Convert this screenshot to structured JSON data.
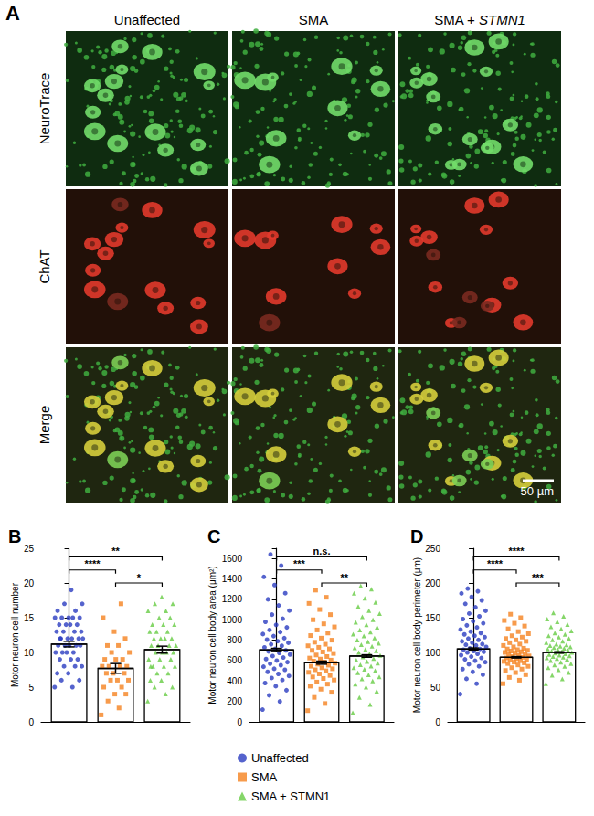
{
  "panel_a": {
    "label": "A",
    "columns": [
      {
        "text": "Unaffected"
      },
      {
        "text": "SMA"
      },
      {
        "text": "SMA + ",
        "italic": "STMN1"
      }
    ],
    "rows": [
      "NeuroTrace",
      "ChAT",
      "Merge"
    ],
    "scale_bar": "50 µm"
  },
  "shared_legend": [
    {
      "name": "Unaffected",
      "color": "#2b3cc0",
      "marker": "circle"
    },
    {
      "name": "SMA",
      "color": "#f5821f",
      "marker": "square"
    },
    {
      "name": "SMA + STMN1",
      "color": "#66cc44",
      "marker": "triangle"
    }
  ],
  "chart_data": [
    {
      "type": "bar",
      "panel": "B",
      "y_label": "Motor neuron cell number",
      "ylim": [
        0,
        25
      ],
      "yticks": [
        0,
        5,
        10,
        15,
        20,
        25
      ],
      "grid": false,
      "tick_labels": "y",
      "series": [
        {
          "name": "Unaffected",
          "mean": 11.2,
          "sem": 0.4,
          "values": [
            5,
            5,
            6,
            6,
            7,
            7,
            8,
            8,
            8,
            9,
            9,
            9,
            10,
            10,
            10,
            10,
            11,
            11,
            11,
            11,
            11,
            12,
            12,
            12,
            12,
            12,
            13,
            13,
            13,
            13,
            14,
            14,
            14,
            14,
            15,
            15,
            15,
            15,
            15,
            16,
            16,
            17,
            17,
            19,
            12
          ]
        },
        {
          "name": "SMA",
          "mean": 7.7,
          "sem": 0.7,
          "values": [
            1,
            2,
            3,
            4,
            4,
            5,
            5,
            6,
            6,
            6,
            7,
            7,
            7,
            8,
            8,
            8,
            8,
            9,
            9,
            9,
            10,
            10,
            11,
            11,
            12,
            13,
            15,
            17
          ]
        },
        {
          "name": "SMA + STMN1",
          "mean": 10.4,
          "sem": 0.5,
          "values": [
            3,
            4,
            5,
            5,
            6,
            6,
            7,
            7,
            8,
            8,
            8,
            9,
            9,
            9,
            10,
            10,
            10,
            10,
            11,
            11,
            11,
            11,
            12,
            12,
            12,
            12,
            13,
            13,
            13,
            14,
            14,
            14,
            15,
            15,
            16,
            16,
            17,
            17,
            18,
            8
          ]
        }
      ],
      "significance": [
        {
          "groups": [
            "SMA",
            "SMA + STMN1"
          ],
          "label": "*"
        },
        {
          "groups": [
            "Unaffected",
            "SMA"
          ],
          "label": "****"
        },
        {
          "groups": [
            "Unaffected",
            "SMA + STMN1"
          ],
          "label": "**"
        }
      ]
    },
    {
      "type": "bar",
      "panel": "C",
      "y_label": "Motor neuron cell body area (μm²)",
      "ylim": [
        0,
        1700
      ],
      "yticks": [
        0,
        200,
        400,
        600,
        800,
        1000,
        1200,
        1400,
        1600
      ],
      "grid": false,
      "tick_labels": "y",
      "series": [
        {
          "name": "Unaffected",
          "mean": 705,
          "sem": 15,
          "values": [
            120,
            200,
            260,
            310,
            350,
            380,
            410,
            430,
            450,
            470,
            490,
            510,
            520,
            540,
            555,
            570,
            585,
            600,
            615,
            630,
            645,
            660,
            675,
            690,
            700,
            715,
            730,
            745,
            760,
            775,
            790,
            805,
            820,
            840,
            860,
            880,
            900,
            925,
            950,
            980,
            1010,
            1050,
            1090,
            1140,
            1200,
            1260,
            1340,
            1420,
            1530,
            1640
          ]
        },
        {
          "name": "SMA",
          "mean": 580,
          "sem": 15,
          "values": [
            110,
            180,
            240,
            290,
            320,
            350,
            370,
            390,
            410,
            425,
            440,
            455,
            470,
            485,
            500,
            510,
            520,
            530,
            545,
            555,
            565,
            575,
            585,
            595,
            605,
            615,
            625,
            640,
            655,
            670,
            685,
            700,
            715,
            730,
            745,
            760,
            780,
            800,
            820,
            845,
            870,
            900,
            930,
            960,
            1000,
            1050,
            1100,
            1160,
            1220,
            1290
          ]
        },
        {
          "name": "SMA + STMN1",
          "mean": 645,
          "sem": 12,
          "values": [
            90,
            170,
            240,
            300,
            340,
            370,
            400,
            420,
            440,
            460,
            480,
            500,
            515,
            530,
            545,
            560,
            575,
            590,
            605,
            620,
            635,
            650,
            665,
            680,
            695,
            710,
            725,
            740,
            755,
            770,
            785,
            800,
            820,
            840,
            860,
            880,
            900,
            925,
            950,
            975,
            1000,
            1030,
            1060,
            1090,
            1130,
            1170,
            1210,
            1260,
            1300,
            1330
          ]
        }
      ],
      "significance": [
        {
          "groups": [
            "SMA",
            "SMA + STMN1"
          ],
          "label": "**"
        },
        {
          "groups": [
            "Unaffected",
            "SMA"
          ],
          "label": "***"
        },
        {
          "groups": [
            "Unaffected",
            "SMA + STMN1"
          ],
          "label": "n.s."
        }
      ]
    },
    {
      "type": "bar",
      "panel": "D",
      "y_label": "Motor neuron cell body perimeter (μm)",
      "ylim": [
        0,
        250
      ],
      "yticks": [
        0,
        50,
        100,
        150,
        200,
        250
      ],
      "grid": false,
      "tick_labels": "y",
      "series": [
        {
          "name": "Unaffected",
          "mean": 105,
          "sem": 1.5,
          "values": [
            40,
            55,
            62,
            68,
            72,
            76,
            80,
            83,
            86,
            88,
            90,
            92,
            94,
            96,
            98,
            100,
            101,
            102,
            104,
            105,
            106,
            108,
            110,
            111,
            112,
            114,
            116,
            118,
            120,
            122,
            124,
            126,
            128,
            130,
            133,
            136,
            139,
            142,
            145,
            148,
            152,
            156,
            160,
            165,
            170,
            175,
            180,
            185,
            188,
            192
          ]
        },
        {
          "name": "SMA",
          "mean": 93,
          "sem": 1,
          "values": [
            55,
            60,
            64,
            68,
            71,
            74,
            76,
            78,
            80,
            82,
            84,
            85,
            86,
            87,
            88,
            89,
            90,
            91,
            92,
            93,
            94,
            95,
            96,
            97,
            98,
            99,
            100,
            101,
            102,
            103,
            104,
            105,
            106,
            108,
            110,
            112,
            114,
            116,
            118,
            120,
            122,
            124,
            127,
            130,
            134,
            138,
            142,
            146,
            150,
            155
          ]
        },
        {
          "name": "SMA + STMN1",
          "mean": 100,
          "sem": 1,
          "values": [
            55,
            62,
            67,
            71,
            75,
            78,
            80,
            82,
            84,
            86,
            88,
            90,
            91,
            92,
            93,
            94,
            95,
            96,
            97,
            98,
            99,
            100,
            101,
            102,
            103,
            104,
            105,
            106,
            107,
            108,
            109,
            110,
            111,
            112,
            114,
            116,
            118,
            120,
            122,
            124,
            126,
            128,
            131,
            134,
            137,
            140,
            144,
            148,
            152,
            157
          ]
        }
      ],
      "significance": [
        {
          "groups": [
            "SMA",
            "SMA + STMN1"
          ],
          "label": "***"
        },
        {
          "groups": [
            "Unaffected",
            "SMA"
          ],
          "label": "****"
        },
        {
          "groups": [
            "Unaffected",
            "SMA + STMN1"
          ],
          "label": "****"
        }
      ]
    }
  ]
}
